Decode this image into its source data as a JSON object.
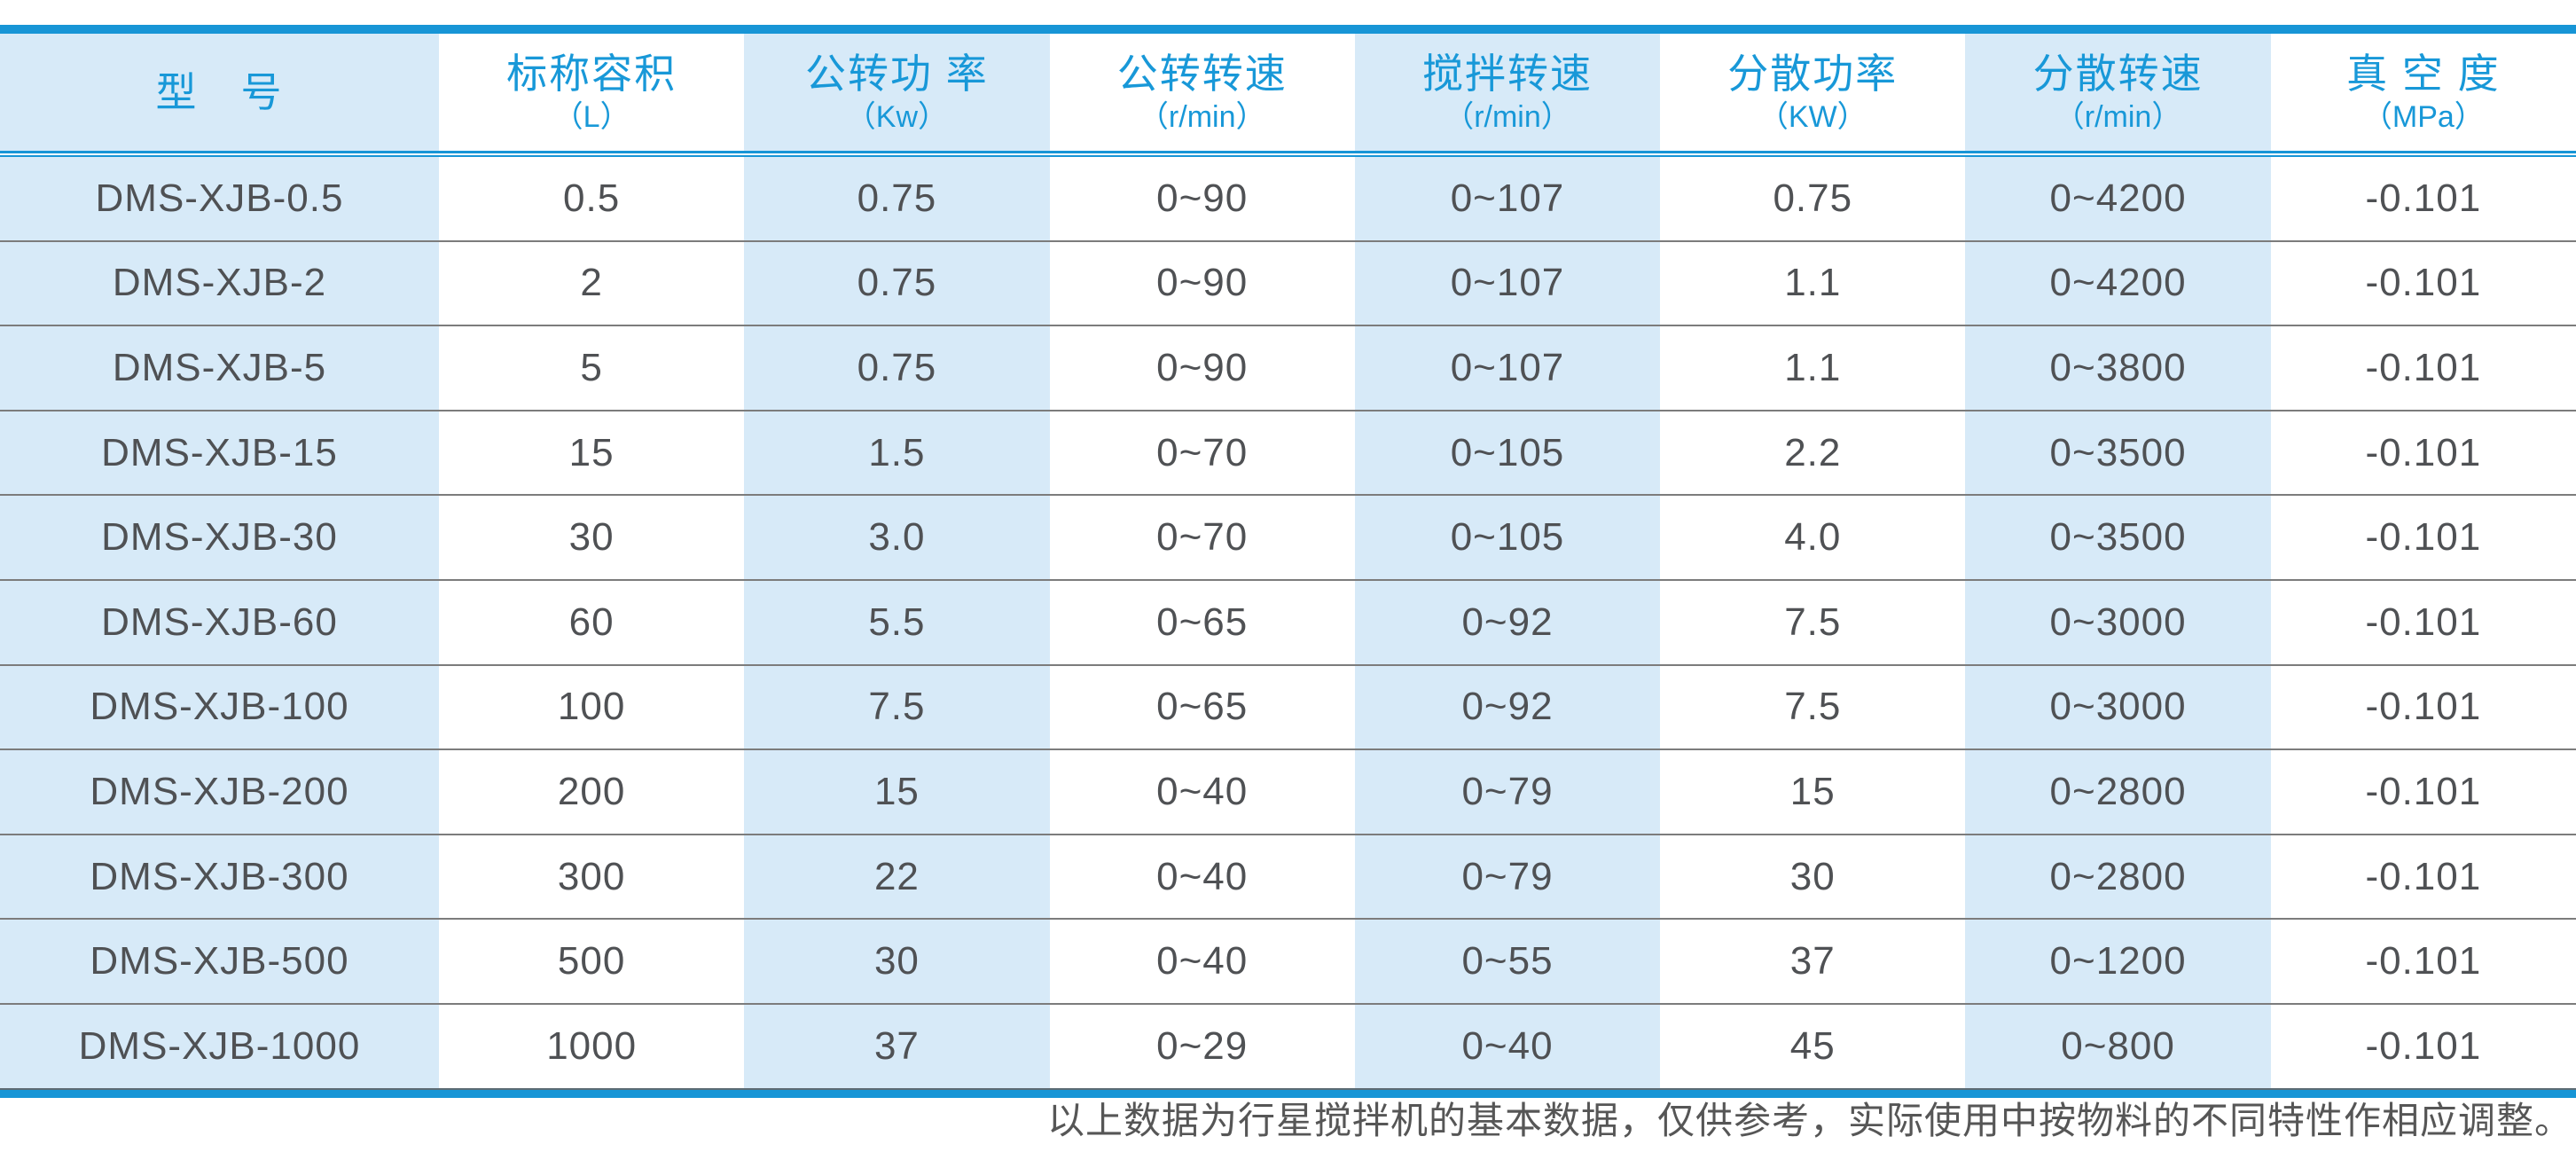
{
  "table": {
    "columns": [
      {
        "title": "型　号",
        "unit": ""
      },
      {
        "title": "标称容积",
        "unit": "（L）"
      },
      {
        "title": "公转功 率",
        "unit": "（Kw）"
      },
      {
        "title": "公转转速",
        "unit": "（r/min）"
      },
      {
        "title": "搅拌转速",
        "unit": "（r/min）"
      },
      {
        "title": "分散功率",
        "unit": "（KW）"
      },
      {
        "title": "分散转速",
        "unit": "（r/min）"
      },
      {
        "title": "真 空 度",
        "unit": "（MPa）"
      }
    ],
    "rows": [
      [
        "DMS-XJB-0.5",
        "0.5",
        "0.75",
        "0~90",
        "0~107",
        "0.75",
        "0~4200",
        "-0.101"
      ],
      [
        "DMS-XJB-2",
        "2",
        "0.75",
        "0~90",
        "0~107",
        "1.1",
        "0~4200",
        "-0.101"
      ],
      [
        "DMS-XJB-5",
        "5",
        "0.75",
        "0~90",
        "0~107",
        "1.1",
        "0~3800",
        "-0.101"
      ],
      [
        "DMS-XJB-15",
        "15",
        "1.5",
        "0~70",
        "0~105",
        "2.2",
        "0~3500",
        "-0.101"
      ],
      [
        "DMS-XJB-30",
        "30",
        "3.0",
        "0~70",
        "0~105",
        "4.0",
        "0~3500",
        "-0.101"
      ],
      [
        "DMS-XJB-60",
        "60",
        "5.5",
        "0~65",
        "0~92",
        "7.5",
        "0~3000",
        "-0.101"
      ],
      [
        "DMS-XJB-100",
        "100",
        "7.5",
        "0~65",
        "0~92",
        "7.5",
        "0~3000",
        "-0.101"
      ],
      [
        "DMS-XJB-200",
        "200",
        "15",
        "0~40",
        "0~79",
        "15",
        "0~2800",
        "-0.101"
      ],
      [
        "DMS-XJB-300",
        "300",
        "22",
        "0~40",
        "0~79",
        "30",
        "0~2800",
        "-0.101"
      ],
      [
        "DMS-XJB-500",
        "500",
        "30",
        "0~40",
        "0~55",
        "37",
        "0~1200",
        "-0.101"
      ],
      [
        "DMS-XJB-1000",
        "1000",
        "37",
        "0~29",
        "0~40",
        "45",
        "0~800",
        "-0.101"
      ]
    ]
  },
  "footer": {
    "note": "以上数据为行星搅拌机的基本数据，仅供参考，实际使用中按物料的不同特性作相应调整。"
  },
  "colors": {
    "accent_blue": "#1795D6",
    "header_text_blue": "#1898D8",
    "stripe_background": "#D7EAF8",
    "body_text": "#4F5154",
    "row_separator": "#7C7C7C",
    "footnote_text": "#565656"
  }
}
